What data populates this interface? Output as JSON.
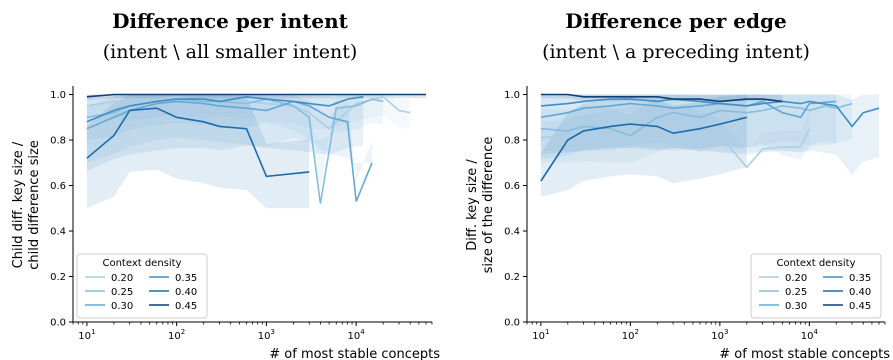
{
  "chart_data": [
    {
      "type": "line",
      "title": "Difference per intent",
      "subtitle": "(intent \\ all smaller intent)",
      "xlabel": "# of most stable concepts",
      "ylabel_lines": [
        "Child diff. key size /",
        "child difference size"
      ],
      "xscale": "log",
      "xlim": [
        7,
        70000
      ],
      "ylim": [
        0.0,
        1.02
      ],
      "xticks": [
        {
          "value": 10,
          "base": "10",
          "exp": "1"
        },
        {
          "value": 100,
          "base": "10",
          "exp": "2"
        },
        {
          "value": 1000,
          "base": "10",
          "exp": "3"
        },
        {
          "value": 10000,
          "base": "10",
          "exp": "4"
        }
      ],
      "yticks": [
        "0.0",
        "0.2",
        "0.4",
        "0.6",
        "0.8",
        "1.0"
      ],
      "legend": {
        "title": "Context density",
        "placement": "lower-left",
        "ncol": 2
      },
      "series": [
        {
          "name": "0.20",
          "color": "#a9cfe5",
          "x": [
            10,
            20,
            30,
            60,
            100,
            200,
            300,
            600,
            1000,
            2000,
            3000,
            5000,
            10000,
            20000,
            30000,
            40000
          ],
          "y": [
            0.95,
            0.97,
            0.96,
            0.98,
            0.99,
            0.97,
            0.98,
            0.97,
            0.96,
            0.95,
            0.92,
            0.85,
            0.96,
            0.99,
            0.93,
            0.92
          ],
          "band": [
            0.85,
            0.99
          ]
        },
        {
          "name": "0.25",
          "color": "#86bcdc",
          "x": [
            10,
            20,
            30,
            60,
            100,
            200,
            300,
            600,
            1000,
            2000,
            3000,
            4000,
            6000,
            10000,
            15000,
            20000
          ],
          "y": [
            0.9,
            0.92,
            0.95,
            0.97,
            0.98,
            0.97,
            0.97,
            0.96,
            0.98,
            0.95,
            0.9,
            0.52,
            0.94,
            0.95,
            0.98,
            0.97
          ],
          "band": [
            0.8,
            0.99
          ]
        },
        {
          "name": "0.30",
          "color": "#63a8d3",
          "x": [
            10,
            20,
            30,
            60,
            100,
            200,
            300,
            600,
            1000,
            2000,
            3000,
            5000,
            8000,
            10000,
            15000
          ],
          "y": [
            0.85,
            0.9,
            0.93,
            0.96,
            0.97,
            0.96,
            0.95,
            0.94,
            0.93,
            0.97,
            0.95,
            0.9,
            0.88,
            0.53,
            0.7
          ],
          "band": [
            0.7,
            0.99
          ]
        },
        {
          "name": "0.35",
          "color": "#3f8fc5",
          "x": [
            10,
            20,
            30,
            60,
            100,
            200,
            300,
            600,
            1000,
            2000,
            3000,
            5000,
            8000,
            12000
          ],
          "y": [
            0.88,
            0.93,
            0.95,
            0.97,
            0.98,
            0.98,
            0.97,
            0.99,
            0.98,
            0.97,
            0.96,
            0.95,
            0.98,
            0.99
          ],
          "band": [
            0.6,
            0.99
          ]
        },
        {
          "name": "0.40",
          "color": "#1c6aae",
          "x": [
            10,
            20,
            30,
            60,
            100,
            200,
            300,
            600,
            1000,
            3000
          ],
          "y": [
            0.72,
            0.82,
            0.93,
            0.94,
            0.9,
            0.88,
            0.86,
            0.85,
            0.64,
            0.66
          ],
          "band": [
            0.5,
            0.99
          ]
        },
        {
          "name": "0.45",
          "color": "#0d3f7a",
          "x": [
            10,
            20,
            30,
            60,
            100,
            200,
            300,
            600,
            1000,
            3000,
            10000,
            60000
          ],
          "y": [
            0.99,
            1.0,
            1.0,
            1.0,
            1.0,
            1.0,
            1.0,
            1.0,
            1.0,
            1.0,
            1.0,
            1.0
          ],
          "band": [
            0.97,
            1.0
          ]
        }
      ]
    },
    {
      "type": "line",
      "title": "Difference per edge",
      "subtitle": "(intent \\ a preceding intent)",
      "xlabel": "# of most stable concepts",
      "ylabel_lines": [
        "Diff. key size /",
        "size of the difference"
      ],
      "xscale": "log",
      "xlim": [
        7,
        70000
      ],
      "ylim": [
        0.0,
        1.02
      ],
      "xticks": [
        {
          "value": 10,
          "base": "10",
          "exp": "1"
        },
        {
          "value": 100,
          "base": "10",
          "exp": "2"
        },
        {
          "value": 1000,
          "base": "10",
          "exp": "3"
        },
        {
          "value": 10000,
          "base": "10",
          "exp": "4"
        }
      ],
      "yticks": [
        "0.0",
        "0.2",
        "0.4",
        "0.6",
        "0.8",
        "1.0"
      ],
      "legend": {
        "title": "Context density",
        "placement": "lower-right",
        "ncol": 2
      },
      "series": [
        {
          "name": "0.20",
          "color": "#a9cfe5",
          "x": [
            10,
            20,
            30,
            60,
            100,
            200,
            300,
            600,
            1000,
            2000,
            3000,
            5000,
            8000,
            10000
          ],
          "y": [
            0.81,
            0.82,
            0.84,
            0.86,
            0.88,
            0.9,
            0.89,
            0.86,
            0.82,
            0.68,
            0.76,
            0.77,
            0.77,
            0.85
          ],
          "band": [
            0.75,
            0.95
          ]
        },
        {
          "name": "0.25",
          "color": "#86bcdc",
          "x": [
            10,
            20,
            30,
            60,
            100,
            200,
            300,
            600,
            1000,
            2000,
            3000,
            5000,
            8000,
            10000,
            15000,
            20000,
            30000
          ],
          "y": [
            0.85,
            0.84,
            0.86,
            0.85,
            0.82,
            0.9,
            0.92,
            0.9,
            0.93,
            0.92,
            0.93,
            0.95,
            0.94,
            0.93,
            0.95,
            0.94,
            0.96
          ],
          "band": [
            0.7,
            0.98
          ]
        },
        {
          "name": "0.30",
          "color": "#63a8d3",
          "x": [
            10,
            20,
            30,
            60,
            100,
            200,
            300,
            600,
            1000,
            2000,
            3000,
            5000,
            8000,
            10000,
            20000
          ],
          "y": [
            0.9,
            0.92,
            0.94,
            0.95,
            0.96,
            0.95,
            0.94,
            0.95,
            0.96,
            0.95,
            0.97,
            0.92,
            0.9,
            0.96,
            0.97
          ],
          "band": [
            0.65,
            0.99
          ]
        },
        {
          "name": "0.35",
          "color": "#3f8fc5",
          "x": [
            10,
            20,
            30,
            60,
            100,
            200,
            300,
            600,
            1000,
            2000,
            3000,
            5000,
            8000,
            10000,
            20000,
            30000,
            40000,
            60000
          ],
          "y": [
            0.95,
            0.96,
            0.97,
            0.98,
            0.98,
            0.97,
            0.98,
            0.97,
            0.96,
            0.95,
            0.96,
            0.97,
            0.96,
            0.97,
            0.95,
            0.86,
            0.92,
            0.94
          ],
          "band": [
            0.6,
            0.99
          ]
        },
        {
          "name": "0.40",
          "color": "#1c6aae",
          "x": [
            10,
            20,
            30,
            60,
            100,
            200,
            300,
            600,
            1000,
            2000
          ],
          "y": [
            0.62,
            0.8,
            0.84,
            0.86,
            0.87,
            0.86,
            0.83,
            0.85,
            0.87,
            0.9
          ],
          "band": [
            0.55,
            0.95
          ]
        },
        {
          "name": "0.45",
          "color": "#0d3f7a",
          "x": [
            10,
            20,
            30,
            60,
            100,
            200,
            300,
            600,
            1000,
            2000,
            3000,
            5000
          ],
          "y": [
            1.0,
            1.0,
            0.99,
            0.99,
            0.99,
            0.99,
            0.98,
            0.98,
            0.97,
            0.98,
            0.98,
            0.97
          ],
          "band": [
            0.97,
            1.0
          ]
        }
      ]
    }
  ]
}
